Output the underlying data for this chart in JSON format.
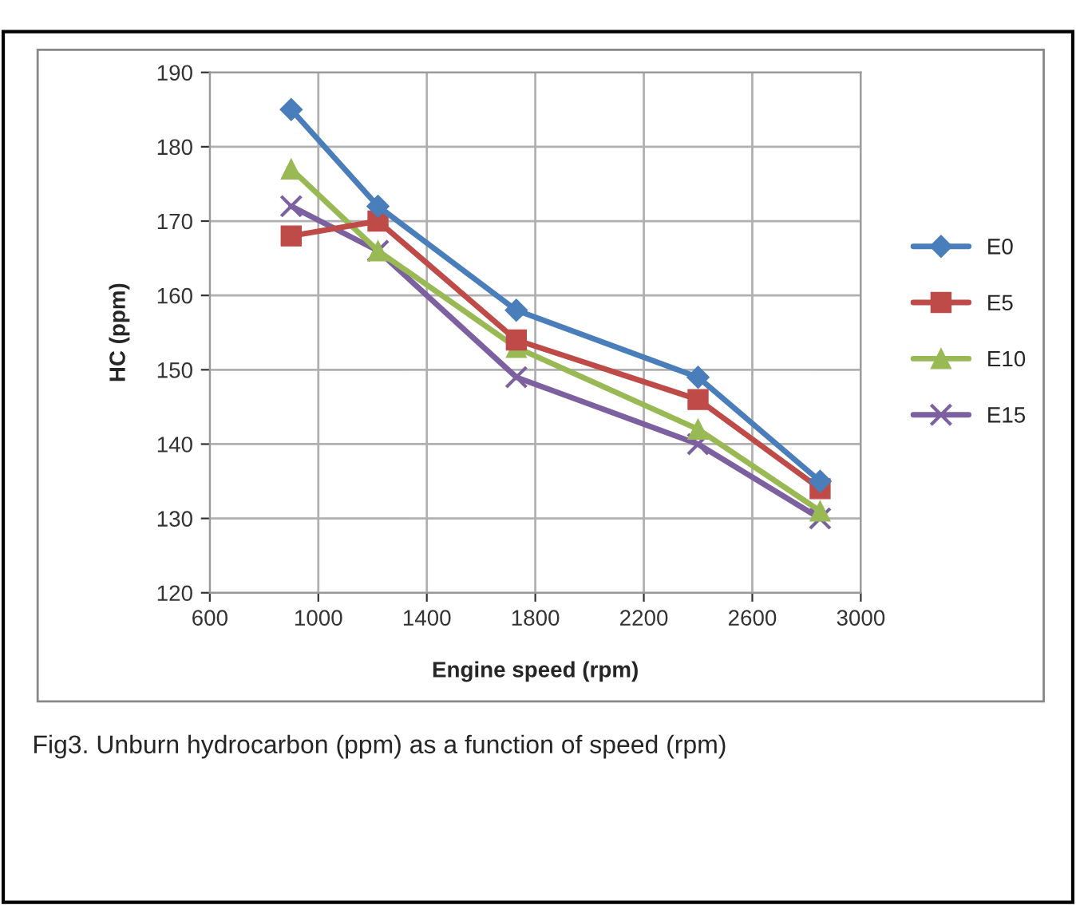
{
  "chart_data": {
    "type": "line",
    "xlabel": "Engine speed (rpm)",
    "ylabel": "HC (ppm)",
    "x": [
      900,
      1220,
      1730,
      2400,
      2850
    ],
    "series": [
      {
        "name": "E0",
        "color": "#4a7ebb",
        "marker": "diamond",
        "values": [
          185,
          172,
          158,
          149,
          135
        ]
      },
      {
        "name": "E5",
        "color": "#be4b48",
        "marker": "square",
        "values": [
          168,
          170,
          154,
          146,
          134
        ]
      },
      {
        "name": "E10",
        "color": "#98b954",
        "marker": "triangle",
        "values": [
          177,
          166,
          153,
          142,
          131
        ]
      },
      {
        "name": "E15",
        "color": "#7d60a0",
        "marker": "cross",
        "values": [
          172,
          166,
          149,
          140,
          130
        ]
      }
    ],
    "xlim": [
      600,
      3000
    ],
    "xticks": [
      600,
      1000,
      1400,
      1800,
      2200,
      2600,
      3000
    ],
    "ylim": [
      120,
      190
    ],
    "yticks": [
      120,
      130,
      140,
      150,
      160,
      170,
      180,
      190
    ],
    "grid": true,
    "legend": "right",
    "annotations": [
      "Fig3. Unburn hydrocarbon (ppm) as a function of speed (rpm)"
    ]
  }
}
